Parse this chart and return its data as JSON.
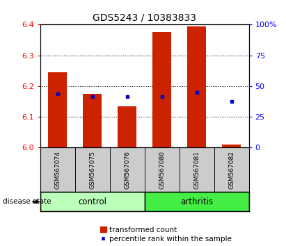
{
  "title": "GDS5243 / 10383833",
  "samples": [
    "GSM567074",
    "GSM567075",
    "GSM567076",
    "GSM567080",
    "GSM567081",
    "GSM567082"
  ],
  "bar_tops": [
    6.245,
    6.175,
    6.135,
    6.375,
    6.395,
    6.01
  ],
  "bar_bottom": 6.0,
  "percentile_values": [
    43.75,
    41.25,
    41.25,
    41.25,
    45.0,
    37.5
  ],
  "ylim_left": [
    6.0,
    6.4
  ],
  "ylim_right": [
    0,
    100
  ],
  "yticks_left": [
    6.0,
    6.1,
    6.2,
    6.3,
    6.4
  ],
  "yticks_right": [
    0,
    25,
    50,
    75,
    100
  ],
  "yticklabels_right": [
    "0",
    "25",
    "50",
    "75",
    "100%"
  ],
  "bar_color": "#cc2200",
  "dot_color": "#0000cc",
  "control_color": "#bbffbb",
  "arthritis_color": "#44ee44",
  "sample_bg_color": "#cccccc",
  "bar_width": 0.55,
  "legend_items": [
    "transformed count",
    "percentile rank within the sample"
  ]
}
